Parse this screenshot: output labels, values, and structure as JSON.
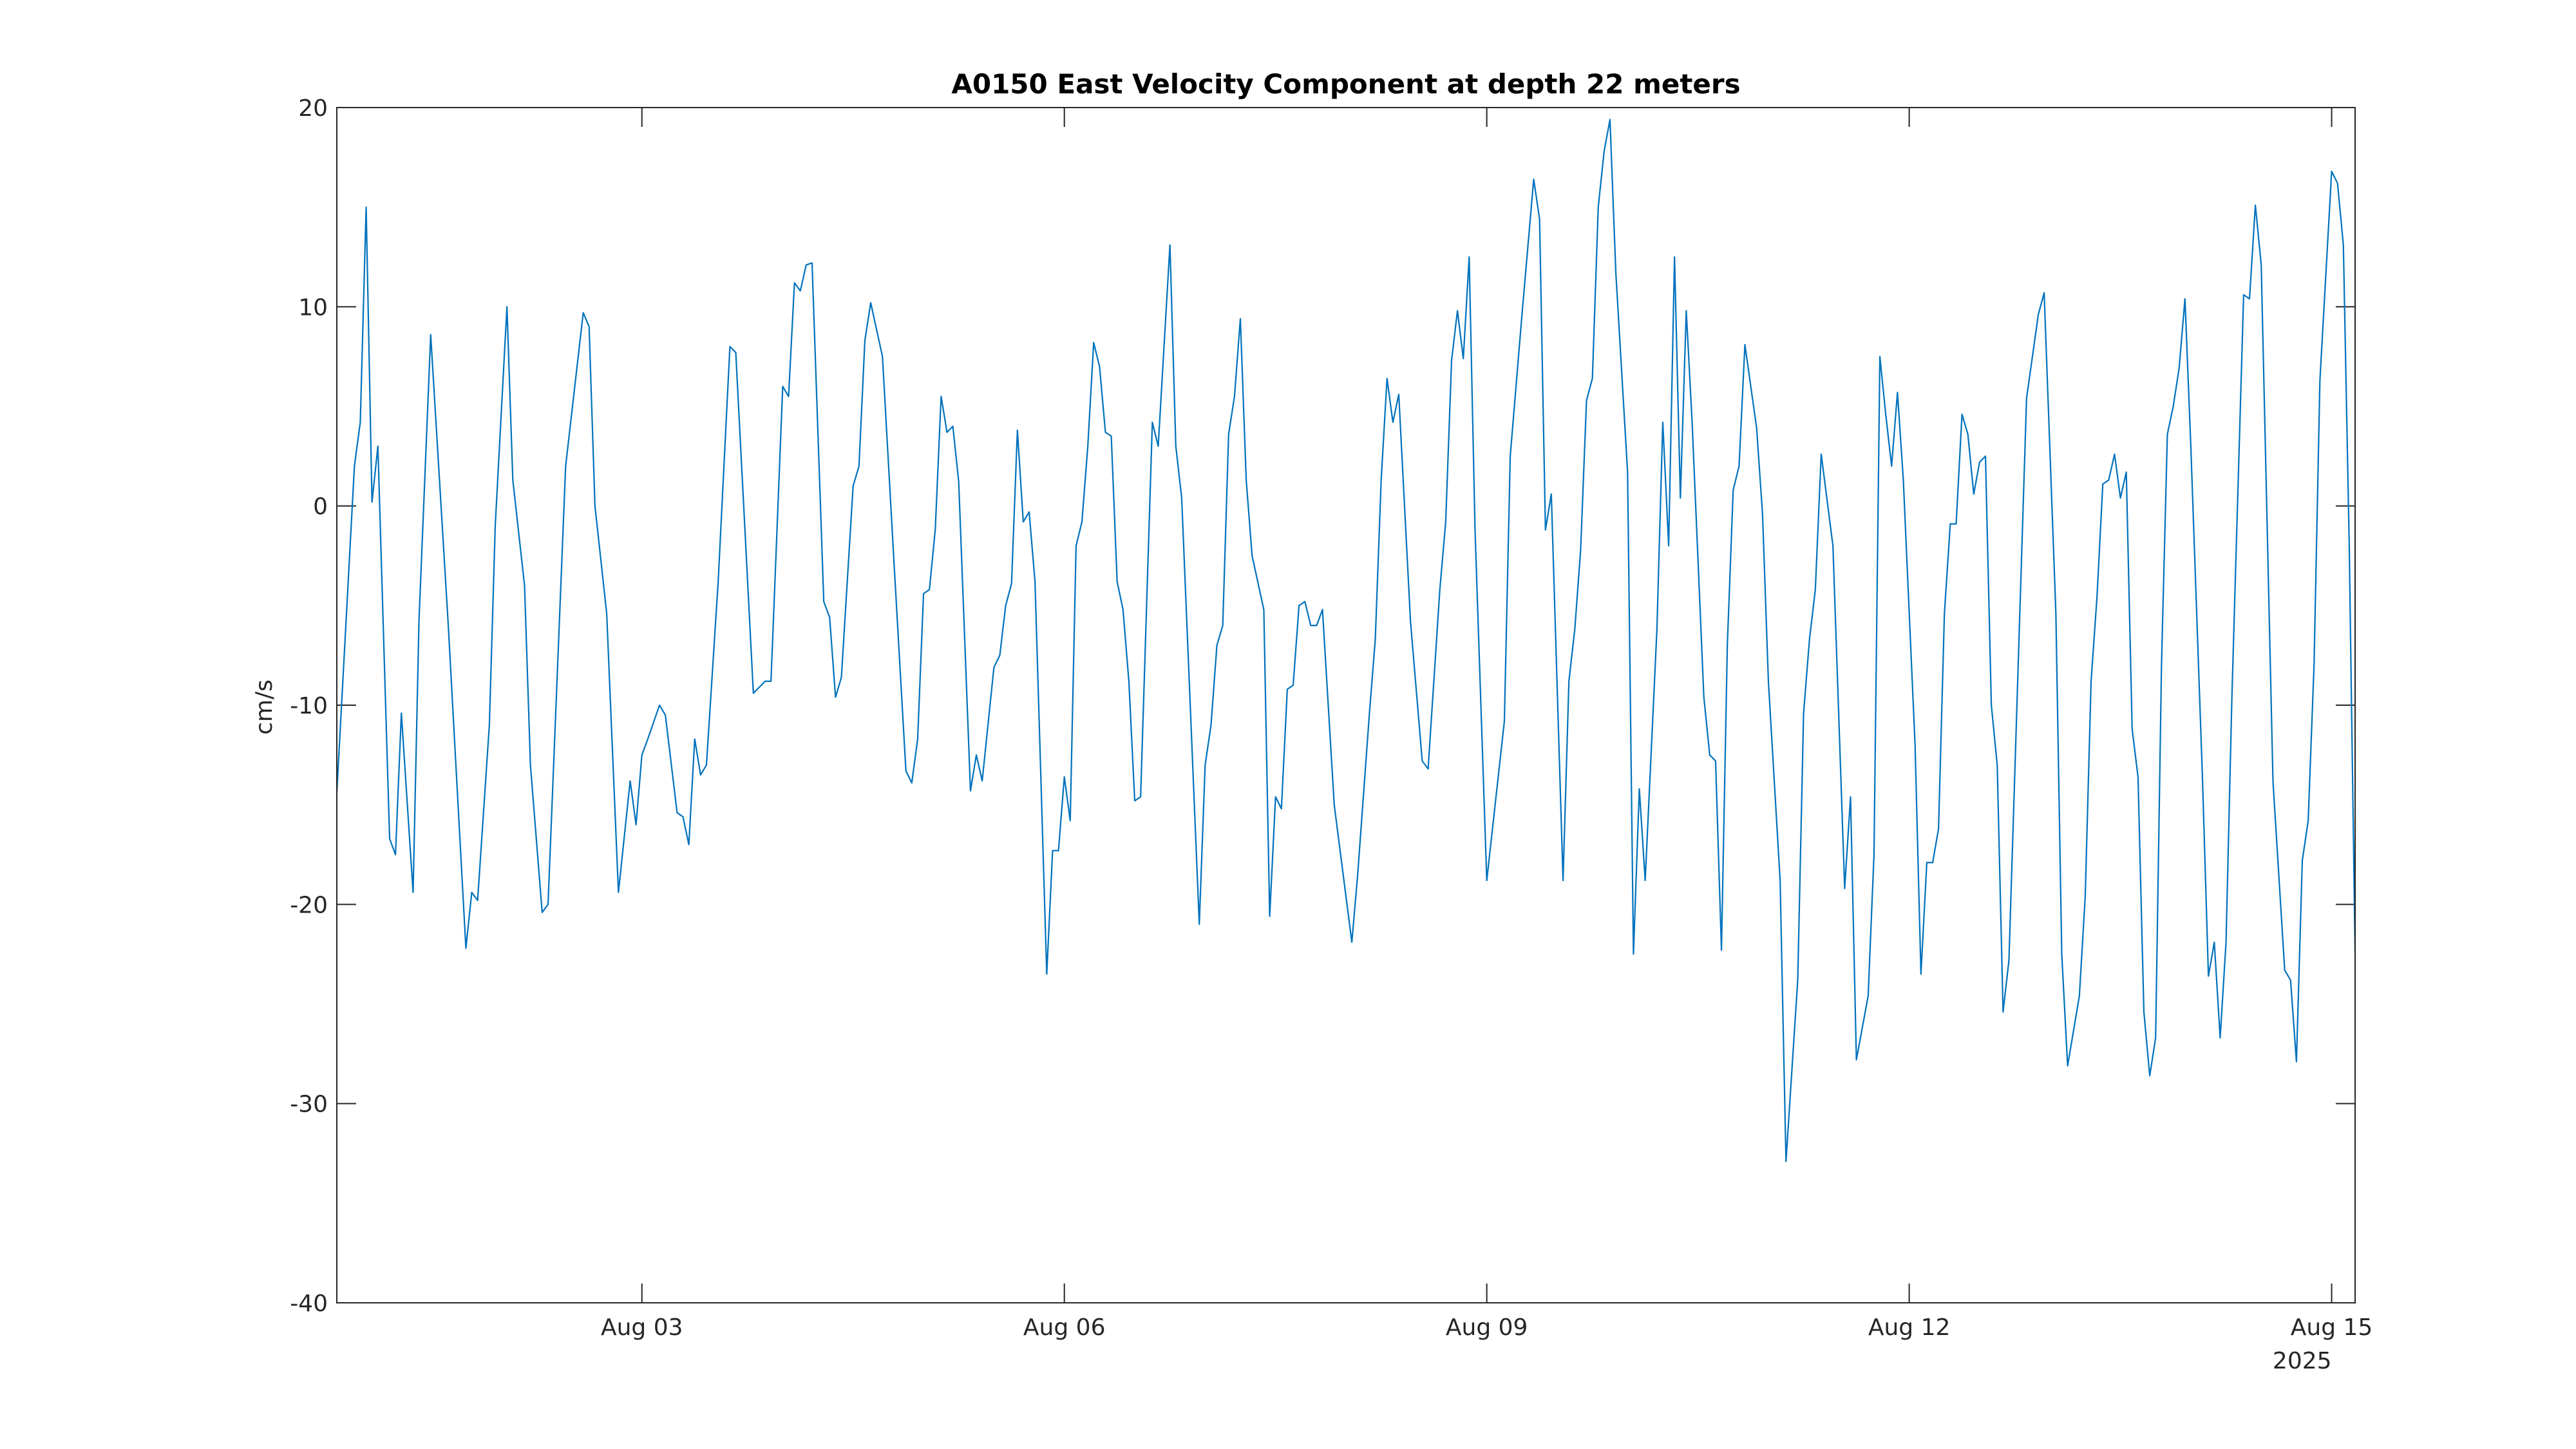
{
  "chart_data": {
    "type": "line",
    "title": "A0150 East Velocity Component at depth 22 meters",
    "ylabel": "cm/s",
    "x_year_label": "2025",
    "color": "#0072bd",
    "grid": false,
    "xlim": [
      "2025-07-31T20:00",
      "2025-08-15T04:00"
    ],
    "xticks": [
      {
        "value": "2025-08-03T00:00",
        "label": "Aug 03"
      },
      {
        "value": "2025-08-06T00:00",
        "label": "Aug 06"
      },
      {
        "value": "2025-08-09T00:00",
        "label": "Aug 09"
      },
      {
        "value": "2025-08-12T00:00",
        "label": "Aug 12"
      },
      {
        "value": "2025-08-15T00:00",
        "label": "Aug 15"
      }
    ],
    "ylim": [
      -40,
      20
    ],
    "yticks": [
      -40,
      -30,
      -20,
      -10,
      0,
      10,
      20
    ],
    "x": [
      "2025-07-31T20:00",
      "2025-07-31T23:00",
      "2025-08-01T00:00",
      "2025-08-01T01:00",
      "2025-08-01T02:00",
      "2025-08-01T03:00",
      "2025-08-01T05:00",
      "2025-08-01T06:00",
      "2025-08-01T07:00",
      "2025-08-01T09:00",
      "2025-08-01T10:00",
      "2025-08-01T12:00",
      "2025-08-01T15:00",
      "2025-08-01T18:00",
      "2025-08-01T19:00",
      "2025-08-01T20:00",
      "2025-08-01T22:00",
      "2025-08-01T23:00",
      "2025-08-02T01:00",
      "2025-08-02T02:00",
      "2025-08-02T04:00",
      "2025-08-02T05:00",
      "2025-08-02T07:00",
      "2025-08-02T08:00",
      "2025-08-02T11:00",
      "2025-08-02T14:00",
      "2025-08-02T15:00",
      "2025-08-02T16:00",
      "2025-08-02T18:00",
      "2025-08-02T20:00",
      "2025-08-02T22:00",
      "2025-08-02T23:00",
      "2025-08-03T00:00",
      "2025-08-03T01:00",
      "2025-08-03T03:00",
      "2025-08-03T04:00",
      "2025-08-03T06:00",
      "2025-08-03T07:00",
      "2025-08-03T08:00",
      "2025-08-03T09:00",
      "2025-08-03T10:00",
      "2025-08-03T11:00",
      "2025-08-03T13:00",
      "2025-08-03T15:00",
      "2025-08-03T16:00",
      "2025-08-03T19:00",
      "2025-08-03T21:00",
      "2025-08-03T22:00",
      "2025-08-04T00:00",
      "2025-08-04T01:00",
      "2025-08-04T02:00",
      "2025-08-04T03:00",
      "2025-08-04T04:00",
      "2025-08-04T05:00",
      "2025-08-04T07:00",
      "2025-08-04T08:00",
      "2025-08-04T09:00",
      "2025-08-04T10:00",
      "2025-08-04T12:00",
      "2025-08-04T13:00",
      "2025-08-04T14:00",
      "2025-08-04T15:00",
      "2025-08-04T17:00",
      "2025-08-04T19:00",
      "2025-08-04T21:00",
      "2025-08-04T22:00",
      "2025-08-04T23:00",
      "2025-08-05T00:00",
      "2025-08-05T01:00",
      "2025-08-05T02:00",
      "2025-08-05T03:00",
      "2025-08-05T04:00",
      "2025-08-05T05:00",
      "2025-08-05T06:00",
      "2025-08-05T08:00",
      "2025-08-05T09:00",
      "2025-08-05T10:00",
      "2025-08-05T12:00",
      "2025-08-05T13:00",
      "2025-08-05T14:00",
      "2025-08-05T15:00",
      "2025-08-05T16:00",
      "2025-08-05T17:00",
      "2025-08-05T18:00",
      "2025-08-05T19:00",
      "2025-08-05T21:00",
      "2025-08-05T22:00",
      "2025-08-05T23:00",
      "2025-08-06T00:00",
      "2025-08-06T01:00",
      "2025-08-06T02:00",
      "2025-08-06T03:00",
      "2025-08-06T04:00",
      "2025-08-06T05:00",
      "2025-08-06T06:00",
      "2025-08-06T07:00",
      "2025-08-06T08:00",
      "2025-08-06T09:00",
      "2025-08-06T10:00",
      "2025-08-06T11:00",
      "2025-08-06T12:00",
      "2025-08-06T13:00",
      "2025-08-06T15:00",
      "2025-08-06T16:00",
      "2025-08-06T18:00",
      "2025-08-06T19:00",
      "2025-08-06T20:00",
      "2025-08-06T23:00",
      "2025-08-07T00:00",
      "2025-08-07T01:00",
      "2025-08-07T02:00",
      "2025-08-07T03:00",
      "2025-08-07T04:00",
      "2025-08-07T05:00",
      "2025-08-07T06:00",
      "2025-08-07T07:00",
      "2025-08-07T08:00",
      "2025-08-07T10:00",
      "2025-08-07T11:00",
      "2025-08-07T12:00",
      "2025-08-07T13:00",
      "2025-08-07T14:00",
      "2025-08-07T15:00",
      "2025-08-07T16:00",
      "2025-08-07T17:00",
      "2025-08-07T18:00",
      "2025-08-07T19:00",
      "2025-08-07T20:00",
      "2025-08-07T22:00",
      "2025-08-08T01:00",
      "2025-08-08T02:00",
      "2025-08-08T04:00",
      "2025-08-08T05:00",
      "2025-08-08T06:00",
      "2025-08-08T07:00",
      "2025-08-08T08:00",
      "2025-08-08T09:00",
      "2025-08-08T11:00",
      "2025-08-08T13:00",
      "2025-08-08T14:00",
      "2025-08-08T16:00",
      "2025-08-08T17:00",
      "2025-08-08T18:00",
      "2025-08-08T19:00",
      "2025-08-08T20:00",
      "2025-08-08T21:00",
      "2025-08-08T22:00",
      "2025-08-09T00:00",
      "2025-08-09T03:00",
      "2025-08-09T04:00",
      "2025-08-09T06:00",
      "2025-08-09T08:00",
      "2025-08-09T09:00",
      "2025-08-09T10:00",
      "2025-08-09T11:00",
      "2025-08-09T13:00",
      "2025-08-09T14:00",
      "2025-08-09T15:00",
      "2025-08-09T16:00",
      "2025-08-09T17:00",
      "2025-08-09T18:00",
      "2025-08-09T19:00",
      "2025-08-09T20:00",
      "2025-08-09T21:00",
      "2025-08-09T22:00",
      "2025-08-10T00:00",
      "2025-08-10T01:00",
      "2025-08-10T02:00",
      "2025-08-10T03:00",
      "2025-08-10T05:00",
      "2025-08-10T06:00",
      "2025-08-10T07:00",
      "2025-08-10T08:00",
      "2025-08-10T09:00",
      "2025-08-10T10:00",
      "2025-08-10T11:00",
      "2025-08-10T13:00",
      "2025-08-10T14:00",
      "2025-08-10T15:00",
      "2025-08-10T16:00",
      "2025-08-10T17:00",
      "2025-08-10T18:00",
      "2025-08-10T19:00",
      "2025-08-10T20:00",
      "2025-08-10T22:00",
      "2025-08-10T23:00",
      "2025-08-11T00:00",
      "2025-08-11T02:00",
      "2025-08-11T03:00",
      "2025-08-11T05:00",
      "2025-08-11T06:00",
      "2025-08-11T07:00",
      "2025-08-11T08:00",
      "2025-08-11T09:00",
      "2025-08-11T11:00",
      "2025-08-11T13:00",
      "2025-08-11T14:00",
      "2025-08-11T15:00",
      "2025-08-11T17:00",
      "2025-08-11T18:00",
      "2025-08-11T19:00",
      "2025-08-11T20:00",
      "2025-08-11T21:00",
      "2025-08-11T22:00",
      "2025-08-11T23:00",
      "2025-08-12T01:00",
      "2025-08-12T02:00",
      "2025-08-12T03:00",
      "2025-08-12T04:00",
      "2025-08-12T05:00",
      "2025-08-12T06:00",
      "2025-08-12T07:00",
      "2025-08-12T08:00",
      "2025-08-12T09:00",
      "2025-08-12T10:00",
      "2025-08-12T11:00",
      "2025-08-12T12:00",
      "2025-08-12T13:00",
      "2025-08-12T14:00",
      "2025-08-12T15:00",
      "2025-08-12T16:00",
      "2025-08-12T17:00",
      "2025-08-12T20:00",
      "2025-08-12T22:00",
      "2025-08-12T23:00",
      "2025-08-13T01:00",
      "2025-08-13T02:00",
      "2025-08-13T03:00",
      "2025-08-13T05:00",
      "2025-08-13T06:00",
      "2025-08-13T07:00",
      "2025-08-13T08:00",
      "2025-08-13T09:00",
      "2025-08-13T10:00",
      "2025-08-13T11:00",
      "2025-08-13T12:00",
      "2025-08-13T13:00",
      "2025-08-13T14:00",
      "2025-08-13T15:00",
      "2025-08-13T16:00",
      "2025-08-13T17:00",
      "2025-08-13T18:00",
      "2025-08-13T19:00",
      "2025-08-13T20:00",
      "2025-08-13T21:00",
      "2025-08-13T22:00",
      "2025-08-13T23:00",
      "2025-08-14T00:00",
      "2025-08-14T02:00",
      "2025-08-14T03:00",
      "2025-08-14T04:00",
      "2025-08-14T05:00",
      "2025-08-14T06:00",
      "2025-08-14T07:00",
      "2025-08-14T09:00",
      "2025-08-14T10:00",
      "2025-08-14T11:00",
      "2025-08-14T12:00",
      "2025-08-14T14:00",
      "2025-08-14T16:00",
      "2025-08-14T17:00",
      "2025-08-14T18:00",
      "2025-08-14T19:00",
      "2025-08-14T20:00",
      "2025-08-14T21:00",
      "2025-08-14T22:00",
      "2025-08-15T00:00",
      "2025-08-15T01:00",
      "2025-08-15T02:00",
      "2025-08-15T03:00",
      "2025-08-15T04:00"
    ],
    "values": [
      -14.4,
      2,
      4.2,
      15,
      0.2,
      3,
      -16.7,
      -17.5,
      -10.4,
      -19.4,
      -5.8,
      8.6,
      -6,
      -22.2,
      -19.4,
      -19.8,
      -11,
      -1,
      10,
      1.3,
      -4,
      -13,
      -20.4,
      -20,
      2,
      9.7,
      9,
      0,
      -5.4,
      -19.4,
      -13.8,
      -16,
      -12.5,
      -11.7,
      -10,
      -10.5,
      -15.4,
      -15.6,
      -17,
      -11.7,
      -13.5,
      -13,
      -3.8,
      8,
      7.7,
      -9.4,
      -8.8,
      -8.8,
      6,
      5.5,
      11.2,
      10.8,
      12.1,
      12.2,
      -4.8,
      -5.6,
      -9.6,
      -8.6,
      1,
      2,
      8.3,
      10.2,
      7.5,
      -3,
      -13.3,
      -13.9,
      -11.7,
      -4.4,
      -4.2,
      -1.2,
      5.5,
      3.7,
      4,
      1.2,
      -14.3,
      -12.5,
      -13.8,
      -8.1,
      -7.5,
      -5,
      -3.9,
      3.8,
      -0.8,
      -0.3,
      -3.8,
      -23.5,
      -17.3,
      -17.3,
      -13.6,
      -15.8,
      -2,
      -0.8,
      3,
      8.2,
      7,
      3.7,
      3.5,
      -3.8,
      -5.2,
      -8.8,
      -14.8,
      -14.6,
      4.2,
      3,
      13.1,
      3,
      0.4,
      -21,
      -13,
      -11,
      -7,
      -6,
      3.6,
      5.5,
      9.4,
      1.3,
      -2.5,
      -5.2,
      -20.6,
      -14.6,
      -15.2,
      -9.2,
      -9,
      -5,
      -4.8,
      -6,
      -6,
      -5.2,
      -15,
      -21.9,
      -18.5,
      -10.4,
      -6.7,
      1.3,
      6.4,
      4.2,
      5.6,
      -5.8,
      -12.8,
      -13.2,
      -4.2,
      -0.8,
      7.3,
      9.8,
      7.4,
      12.5,
      -1.2,
      -18.8,
      -10.8,
      2.5,
      9.6,
      16.4,
      14.4,
      -1.2,
      0.6,
      -18.8,
      -8.8,
      -6.2,
      -2.2,
      5.3,
      6.4,
      15,
      17.8,
      19.4,
      11.7,
      1.7,
      -22.5,
      -14.2,
      -18.8,
      -6.2,
      4.2,
      -2,
      12.5,
      0.4,
      9.8,
      4.2,
      -9.6,
      -12.5,
      -12.8,
      -22.3,
      -7,
      0.8,
      2,
      8.1,
      3.9,
      -0.4,
      -8.8,
      -18.8,
      -32.9,
      -23.8,
      -10.4,
      -6.7,
      -4.2,
      2.6,
      -2,
      -19.2,
      -14.6,
      -27.8,
      -24.6,
      -17.5,
      7.5,
      4.6,
      2,
      5.7,
      1.3,
      -12,
      -23.5,
      -17.9,
      -17.9,
      -16.2,
      -5.4,
      -0.9,
      -0.9,
      4.6,
      3.6,
      0.6,
      2.2,
      2.5,
      -10,
      -13,
      -25.4,
      -22.8,
      5.4,
      9.6,
      10.7,
      -5.4,
      -22.5,
      -28.1,
      -24.6,
      -19.6,
      -8.8,
      -4.6,
      1.1,
      1.3,
      2.6,
      0.4,
      1.7,
      -11.2,
      -13.6,
      -25.4,
      -28.6,
      -26.7,
      -8,
      3.6,
      5,
      6.9,
      10.4,
      3,
      -13.8,
      -23.6,
      -21.9,
      -26.7,
      -21.9,
      -9.6,
      10.6,
      10.4,
      15.1,
      12.1,
      -13.8,
      -23.3,
      -23.8,
      -27.9,
      -17.8,
      -15.8,
      -8,
      6.3,
      16.8,
      16.2,
      13.1,
      -2,
      -22.5
    ]
  }
}
